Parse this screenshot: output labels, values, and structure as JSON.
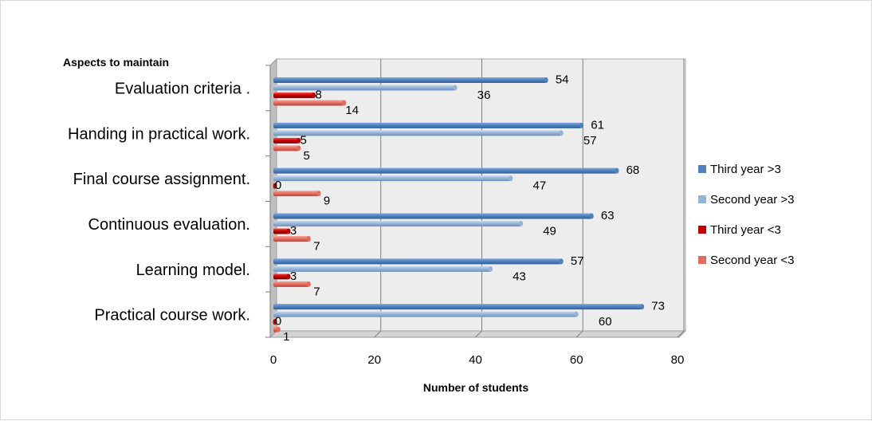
{
  "chart_data": {
    "type": "bar",
    "orientation": "horizontal",
    "title": "Aspects to maintain",
    "xlabel": "Number of students",
    "ylabel": "",
    "xlim": [
      0,
      80
    ],
    "xticks": [
      0,
      20,
      40,
      60,
      80
    ],
    "grid": true,
    "legend_position": "right",
    "categories": [
      "Evaluation criteria .",
      "Handing in practical work.",
      "Final course assignment.",
      "Continuous evaluation.",
      "Learning model.",
      "Practical course work."
    ],
    "series": [
      {
        "name": "Third year >3",
        "color": "#4f81bd",
        "values": [
          54,
          61,
          68,
          63,
          57,
          73
        ]
      },
      {
        "name": "Second year >3",
        "color": "#95b3d7",
        "values": [
          36,
          57,
          47,
          49,
          43,
          60
        ]
      },
      {
        "name": "Third year <3",
        "color": "#c00000",
        "values": [
          8,
          5,
          0,
          3,
          3,
          0
        ]
      },
      {
        "name": "Second year <3",
        "color": "#e46c5f",
        "values": [
          14,
          5,
          9,
          7,
          7,
          1
        ]
      }
    ]
  }
}
